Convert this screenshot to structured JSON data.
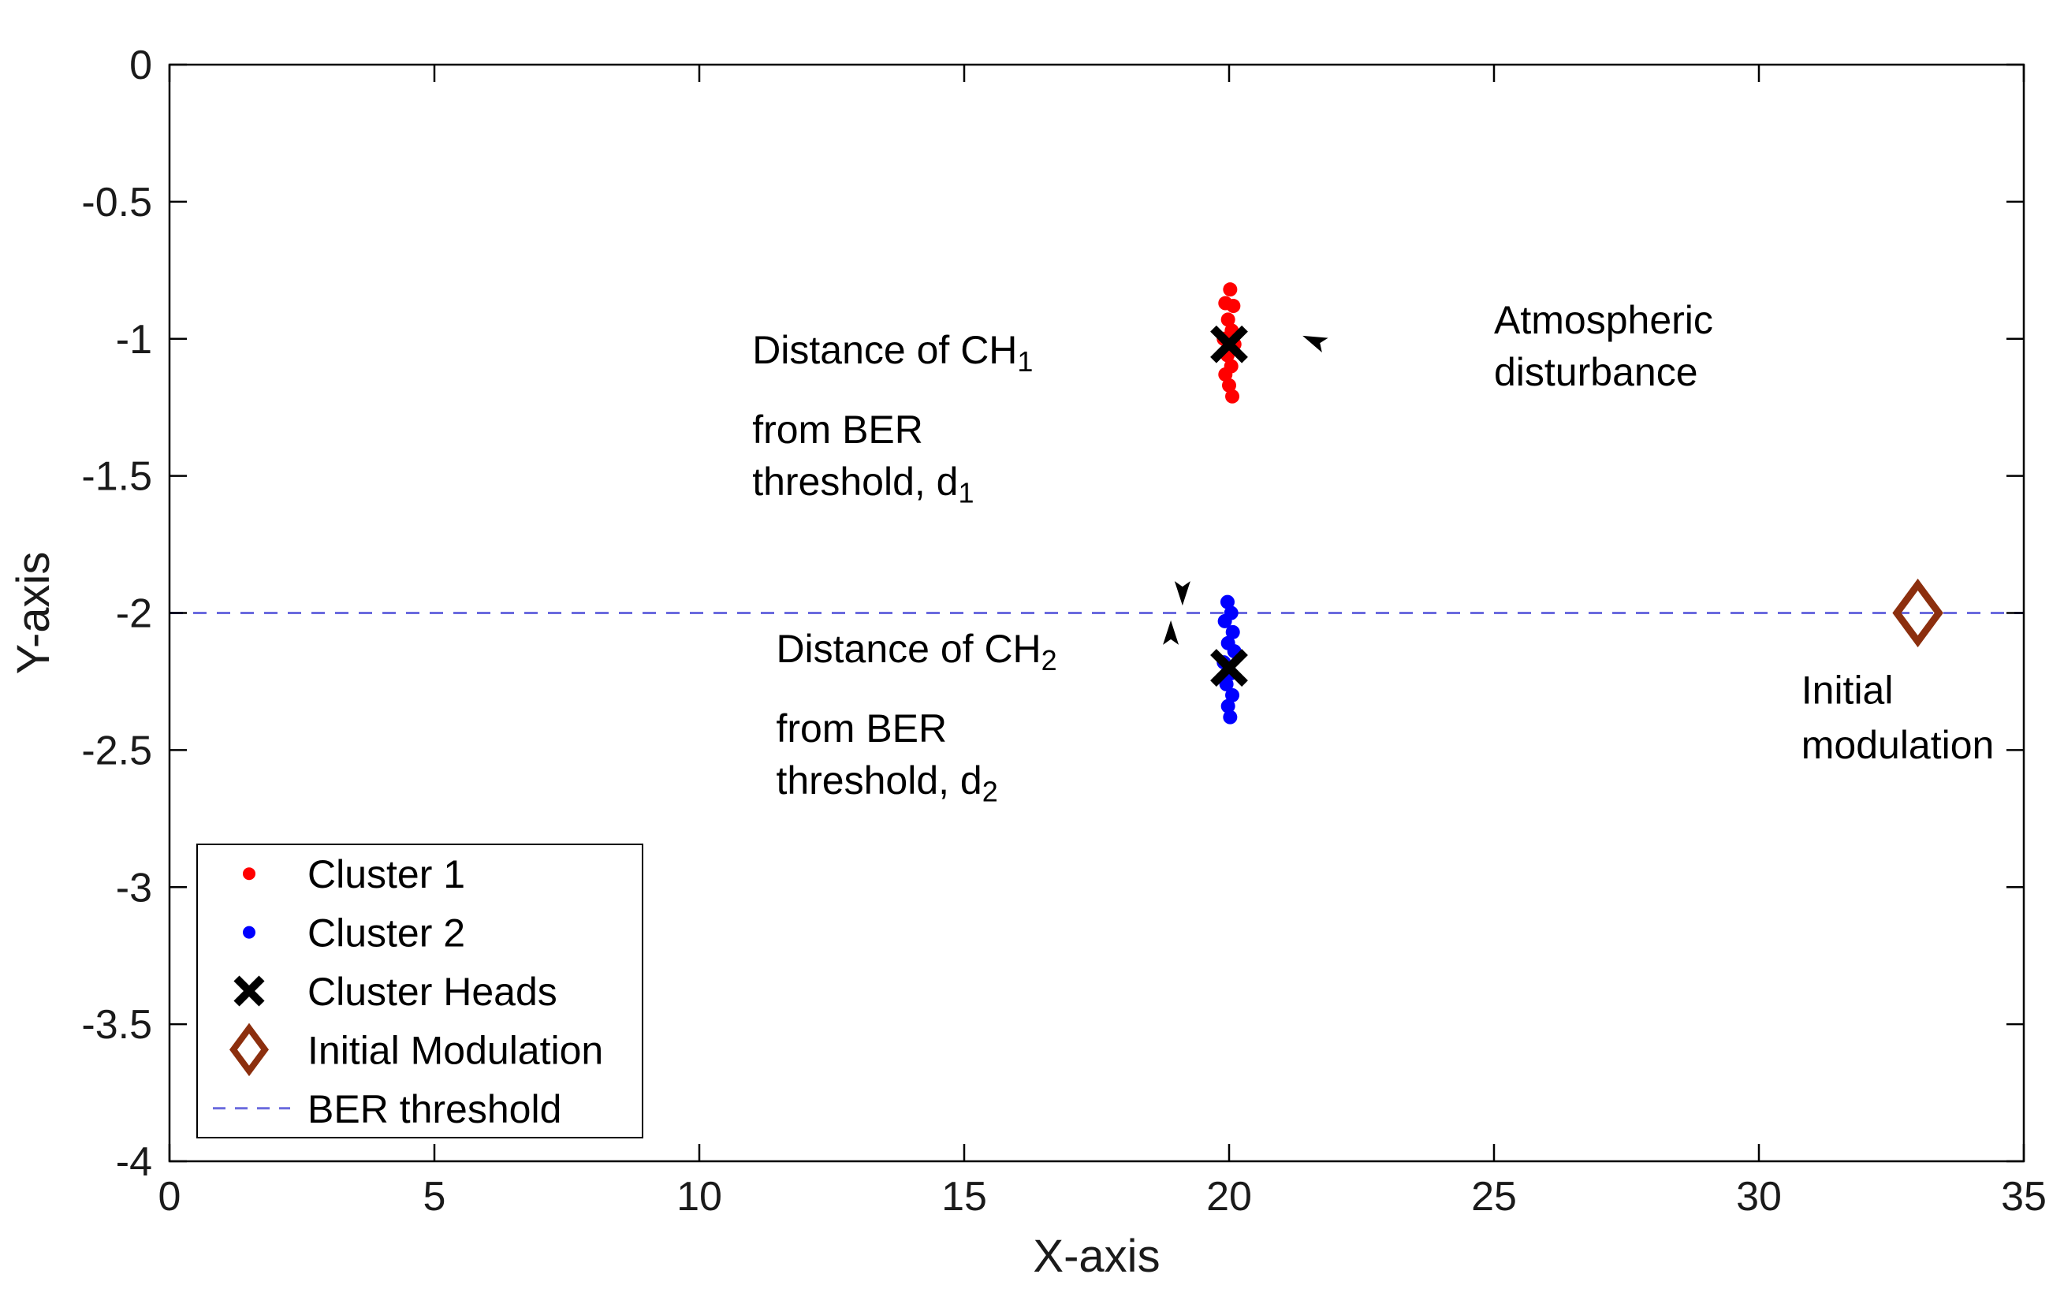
{
  "chart_data": {
    "type": "scatter",
    "title": "",
    "xlabel": "X-axis",
    "ylabel": "Y-axis",
    "xlim": [
      0,
      35
    ],
    "ylim": [
      -4,
      0
    ],
    "xticks": [
      0,
      5,
      10,
      15,
      20,
      25,
      30,
      35
    ],
    "yticks": [
      0,
      -0.5,
      -1,
      -1.5,
      -2,
      -2.5,
      -3,
      -3.5,
      -4
    ],
    "grid": false,
    "legend_position": "bottom-left",
    "series": [
      {
        "name": "Cluster 1",
        "marker": "dot",
        "color": "#ff0000",
        "points": [
          [
            20.02,
            -0.82
          ],
          [
            19.93,
            -0.87
          ],
          [
            20.08,
            -0.88
          ],
          [
            19.98,
            -0.93
          ],
          [
            20.05,
            -0.97
          ],
          [
            19.9,
            -1.0
          ],
          [
            20.1,
            -1.02
          ],
          [
            19.97,
            -1.06
          ],
          [
            20.04,
            -1.1
          ],
          [
            19.93,
            -1.13
          ],
          [
            20.0,
            -1.17
          ],
          [
            20.06,
            -1.21
          ]
        ]
      },
      {
        "name": "Cluster 2",
        "marker": "dot",
        "color": "#0000ff",
        "points": [
          [
            19.97,
            -1.96
          ],
          [
            20.04,
            -2.0
          ],
          [
            19.92,
            -2.03
          ],
          [
            20.07,
            -2.07
          ],
          [
            19.98,
            -2.11
          ],
          [
            20.1,
            -2.14
          ],
          [
            19.9,
            -2.18
          ],
          [
            20.03,
            -2.22
          ],
          [
            19.95,
            -2.26
          ],
          [
            20.06,
            -2.3
          ],
          [
            19.98,
            -2.34
          ],
          [
            20.02,
            -2.38
          ]
        ]
      },
      {
        "name": "Cluster Heads",
        "marker": "x",
        "color": "#000000",
        "points": [
          [
            20.0,
            -1.02
          ],
          [
            20.0,
            -2.2
          ]
        ]
      },
      {
        "name": "Initial Modulation",
        "marker": "diamond",
        "color": "#8c2f0e",
        "points": [
          [
            33.0,
            -2.0
          ]
        ]
      }
    ],
    "threshold": {
      "label": "BER threshold",
      "y": -2,
      "color": "#6b6bde",
      "style": "dashed"
    },
    "annotations": [
      {
        "name": "d1-label",
        "x": 11.0,
        "lines": [
          {
            "y": -1.09,
            "parts": [
              {
                "t": "Distance of CH"
              },
              {
                "t": "1",
                "sub": true
              }
            ]
          },
          {
            "y": -1.38,
            "parts": [
              {
                "t": "from BER"
              }
            ]
          },
          {
            "y": -1.57,
            "parts": [
              {
                "t": "threshold, d"
              },
              {
                "t": "1",
                "sub": true
              }
            ]
          }
        ]
      },
      {
        "name": "d2-label",
        "x": 11.45,
        "lines": [
          {
            "y": -2.18,
            "parts": [
              {
                "t": "Distance of CH"
              },
              {
                "t": "2",
                "sub": true
              }
            ]
          },
          {
            "y": -2.47,
            "parts": [
              {
                "t": "from BER"
              }
            ]
          },
          {
            "y": -2.66,
            "parts": [
              {
                "t": "threshold, d"
              },
              {
                "t": "2",
                "sub": true
              }
            ]
          }
        ]
      },
      {
        "name": "atmospheric-label",
        "x": 25.0,
        "lines": [
          {
            "y": -0.98,
            "parts": [
              {
                "t": "Atmospheric"
              }
            ]
          },
          {
            "y": -1.17,
            "parts": [
              {
                "t": "disturbance"
              }
            ]
          }
        ]
      },
      {
        "name": "initial-modulation-label",
        "x": 30.8,
        "lines": [
          {
            "y": -2.33,
            "parts": [
              {
                "t": "Initial"
              }
            ]
          },
          {
            "y": -2.53,
            "parts": [
              {
                "t": "modulation"
              }
            ]
          }
        ]
      }
    ],
    "arrows": [
      {
        "name": "atmospheric-arrow",
        "from": [
          32.6,
          -1.9
        ],
        "to": [
          21.4,
          -0.99
        ]
      },
      {
        "name": "d1-arrow",
        "from": [
          19.12,
          -1.07
        ],
        "to": [
          19.12,
          -1.97
        ]
      },
      {
        "name": "d2-arrow",
        "from": [
          18.9,
          -2.27
        ],
        "to": [
          18.9,
          -2.03
        ]
      }
    ],
    "legend": {
      "entries": [
        {
          "label": "Cluster 1",
          "marker": "dot",
          "color": "#ff0000"
        },
        {
          "label": "Cluster 2",
          "marker": "dot",
          "color": "#0000ff"
        },
        {
          "label": "Cluster Heads",
          "marker": "x",
          "color": "#000000"
        },
        {
          "label": "Initial Modulation",
          "marker": "diamond",
          "color": "#8c2f0e"
        },
        {
          "label": "BER threshold",
          "marker": "dashed-line",
          "color": "#6b6bde"
        }
      ]
    }
  }
}
